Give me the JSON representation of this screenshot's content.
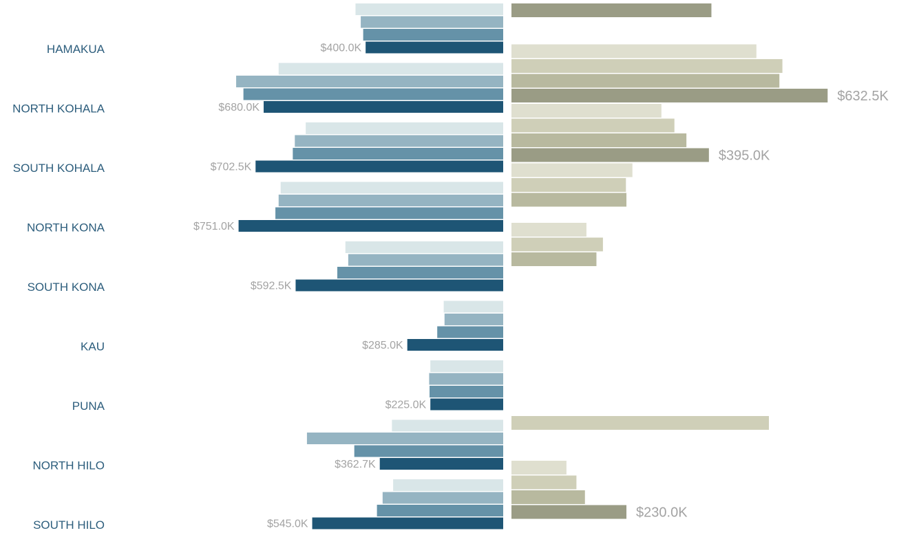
{
  "chart_data": {
    "type": "bar",
    "orientation": "horizontal-diverging",
    "categories": [
      "HAMAKUA",
      "NORTH KOHALA",
      "SOUTH KOHALA",
      "NORTH KONA",
      "SOUTH KONA",
      "KAU",
      "PUNA",
      "NORTH HILO",
      "SOUTH HILO"
    ],
    "left": {
      "series_count": 4,
      "colors": [
        "#d9e6e8",
        "#95b4c2",
        "#6592a8",
        "#1e5575"
      ],
      "values": [
        [
          365,
          352,
          346,
          340
        ],
        [
          555,
          660,
          642,
          592
        ],
        [
          488,
          515,
          520,
          612
        ],
        [
          550,
          555,
          563,
          654
        ],
        [
          390,
          383,
          410,
          513
        ],
        [
          147,
          145,
          163,
          237
        ],
        [
          180,
          183,
          182,
          180
        ],
        [
          275,
          485,
          368,
          305
        ],
        [
          272,
          298,
          312,
          472
        ]
      ],
      "labels": [
        "$400.0K",
        "$680.0K",
        "$702.5K",
        "$751.0K",
        "$592.5K",
        "$285.0K",
        "$225.0K",
        "$362.7K",
        "$545.0K"
      ]
    },
    "right": {
      "series_count": 4,
      "colors": [
        "#dfdfcf",
        "#cfcfb8",
        "#b8b99f",
        "#9a9c85"
      ],
      "values": [
        [
          null,
          null,
          null,
          400
        ],
        [
          490,
          542,
          536,
          632.5
        ],
        [
          300,
          326,
          350,
          395
        ],
        [
          242,
          229,
          230,
          null
        ],
        [
          150,
          183,
          170,
          null
        ],
        [
          null,
          null,
          null,
          null
        ],
        [
          null,
          null,
          null,
          null
        ],
        [
          null,
          515,
          null,
          null
        ],
        [
          110,
          130,
          147,
          230
        ]
      ],
      "labels": [
        "",
        "$632.5K",
        "$395.0K",
        "",
        "",
        "",
        "",
        "",
        "$230.0K"
      ]
    }
  }
}
